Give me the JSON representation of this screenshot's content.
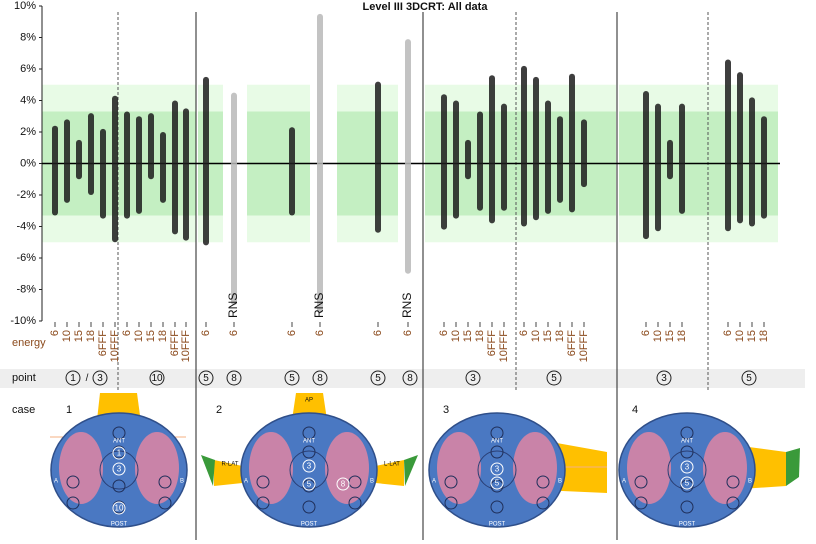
{
  "chart_data": {
    "type": "strip",
    "title": "Level III 3DCRT: All data",
    "ylim": [
      -10,
      10
    ],
    "yticks": [
      {
        "value": -10,
        "label": "-10%"
      },
      {
        "value": -8,
        "label": "-8%"
      },
      {
        "value": -6,
        "label": "-6%"
      },
      {
        "value": -4,
        "label": "-4%"
      },
      {
        "value": -2,
        "label": "-2%"
      },
      {
        "value": 0,
        "label": "0%"
      },
      {
        "value": 2,
        "label": "2%"
      },
      {
        "value": 4,
        "label": "4%"
      },
      {
        "value": 6,
        "label": "6%"
      },
      {
        "value": 8,
        "label": "8%"
      },
      {
        "value": 10,
        "label": "10%"
      }
    ],
    "bands": [
      {
        "low": -5,
        "high": 5,
        "color": "#e8fbe6"
      },
      {
        "low": -3.3,
        "high": 3.3,
        "color": "#c4efc2"
      }
    ],
    "colors": {
      "standard": "#1c1c1c",
      "RNS": "#b8b8b8"
    },
    "columns": [
      {
        "energy": "6",
        "low": -3.3,
        "high": 2.4
      },
      {
        "energy": "10",
        "low": -2.5,
        "high": 2.8
      },
      {
        "energy": "15",
        "low": -1,
        "high": 1.5
      },
      {
        "energy": "18",
        "low": -2,
        "high": 3.2
      },
      {
        "energy": "6FFF",
        "low": -3.5,
        "high": 2.2
      },
      {
        "energy": "10FFF",
        "low": -5,
        "high": 4.3
      },
      {
        "energy": "6",
        "low": -3.5,
        "high": 3.3
      },
      {
        "energy": "10",
        "low": -3.2,
        "high": 3
      },
      {
        "energy": "15",
        "low": -1,
        "high": 3.2
      },
      {
        "energy": "18",
        "low": -2.5,
        "high": 2
      },
      {
        "energy": "6FFF",
        "low": -4.5,
        "high": 4
      },
      {
        "energy": "10FFF",
        "low": -4.9,
        "high": 3.5
      },
      {
        "energy": "6",
        "low": -5.2,
        "high": 5.5
      },
      {
        "energy": "6",
        "note": "RNS",
        "low": -9,
        "high": 4.5
      },
      {
        "energy": "6",
        "low": -3.3,
        "high": 2.3
      },
      {
        "energy": "6",
        "note": "RNS",
        "low": -9.5,
        "high": 9.5
      },
      {
        "energy": "6",
        "low": -4.4,
        "high": 5.2
      },
      {
        "energy": "6",
        "note": "RNS",
        "low": -7,
        "high": 7.9
      },
      {
        "energy": "6",
        "low": -4.2,
        "high": 4.4
      },
      {
        "energy": "10",
        "low": -3.5,
        "high": 4
      },
      {
        "energy": "15",
        "low": -1,
        "high": 1.5
      },
      {
        "energy": "18",
        "low": -3,
        "high": 3.3
      },
      {
        "energy": "6FFF",
        "low": -3.8,
        "high": 5.6
      },
      {
        "energy": "10FFF",
        "low": -3,
        "high": 3.8
      },
      {
        "energy": "6",
        "low": -4,
        "high": 6.2
      },
      {
        "energy": "10",
        "low": -3.6,
        "high": 5.5
      },
      {
        "energy": "15",
        "low": -3.2,
        "high": 4
      },
      {
        "energy": "18",
        "low": -2.5,
        "high": 3
      },
      {
        "energy": "6FFF",
        "low": -3.1,
        "high": 5.7
      },
      {
        "energy": "10FFF",
        "low": -1.5,
        "high": 2.8
      },
      {
        "energy": "6",
        "low": -4.8,
        "high": 4.6
      },
      {
        "energy": "10",
        "low": -4.3,
        "high": 3.8
      },
      {
        "energy": "15",
        "low": -1,
        "high": 1.5
      },
      {
        "energy": "18",
        "low": -3.2,
        "high": 3.8
      },
      {
        "energy": "6",
        "low": -4.3,
        "high": 6.6
      },
      {
        "energy": "10",
        "low": -3.8,
        "high": 5.8
      },
      {
        "energy": "15",
        "low": -4,
        "high": 4.2
      },
      {
        "energy": "18",
        "low": -3.5,
        "high": 3
      }
    ],
    "points": [
      {
        "label": "1",
        "circled": true
      },
      {
        "label": "/",
        "circled": false
      },
      {
        "label": "3",
        "circled": true
      },
      {
        "label": "10",
        "circled": true
      },
      {
        "label": "5",
        "circled": true
      },
      {
        "label": "8",
        "circled": true
      },
      {
        "label": "5",
        "circled": true
      },
      {
        "label": "8",
        "circled": true
      },
      {
        "label": "5",
        "circled": true
      },
      {
        "label": "8",
        "circled": true
      },
      {
        "label": "3",
        "circled": true
      },
      {
        "label": "5",
        "circled": true
      },
      {
        "label": "3",
        "circled": true
      },
      {
        "label": "5",
        "circled": true
      }
    ]
  },
  "rows": {
    "energy": "energy",
    "point": "point",
    "case": "case"
  },
  "cases": [
    {
      "number": "1",
      "ant": "ANT",
      "post": "POST",
      "left": "A",
      "right": "B",
      "inner": [
        "1",
        "3",
        "10"
      ]
    },
    {
      "number": "2",
      "ant": "ANT",
      "post": "POST",
      "left": "A",
      "right": "B",
      "inner": [
        "3",
        "5",
        "8"
      ],
      "beams": [
        "AP",
        "R-LAT",
        "L-LAT"
      ]
    },
    {
      "number": "3",
      "ant": "ANT",
      "post": "POST",
      "left": "A",
      "right": "B",
      "inner": [
        "3",
        "5"
      ]
    },
    {
      "number": "4",
      "ant": "ANT",
      "post": "POST",
      "left": "A",
      "right": "B",
      "inner": [
        "3",
        "5"
      ]
    }
  ]
}
